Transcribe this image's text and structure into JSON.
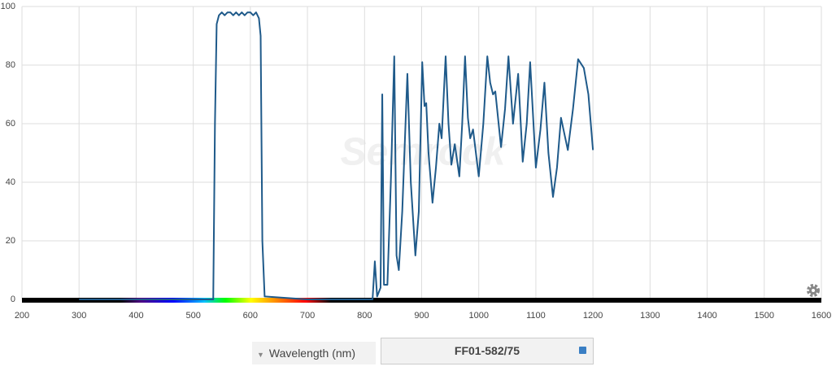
{
  "chart_data": {
    "type": "line",
    "watermark": "Semrock",
    "x": [
      300,
      535,
      538,
      541,
      545,
      550,
      555,
      560,
      565,
      570,
      575,
      580,
      585,
      590,
      595,
      600,
      605,
      610,
      615,
      618,
      621,
      625,
      700,
      814,
      818,
      822,
      828,
      831,
      834,
      840,
      846,
      852,
      856,
      860,
      866,
      875,
      881,
      889,
      895,
      901,
      905,
      908,
      912,
      919,
      925,
      931,
      935,
      942,
      947,
      952,
      958,
      966,
      971,
      976,
      981,
      985,
      990,
      1000,
      1008,
      1015,
      1020,
      1025,
      1029,
      1039,
      1046,
      1052,
      1060,
      1069,
      1077,
      1084,
      1090,
      1100,
      1108,
      1115,
      1122,
      1130,
      1137,
      1144,
      1156,
      1165,
      1174,
      1184,
      1192,
      1200
    ],
    "series": [
      {
        "name": "FF01-582/75",
        "color": "#1f5a8a",
        "values": [
          0,
          0,
          60,
          94,
          97,
          98,
          97,
          98,
          98,
          97,
          98,
          97,
          98,
          97,
          98,
          98,
          97,
          98,
          96,
          90,
          20,
          1,
          0,
          0,
          13,
          1,
          4,
          70,
          5,
          5,
          40,
          83,
          15,
          10,
          30,
          77,
          40,
          15,
          30,
          81,
          66,
          67,
          50,
          33,
          45,
          60,
          55,
          83,
          60,
          46,
          53,
          42,
          60,
          83,
          62,
          55,
          58,
          42,
          60,
          83,
          74,
          70,
          71,
          52,
          65,
          83,
          60,
          77,
          47,
          60,
          81,
          45,
          58,
          74,
          50,
          35,
          45,
          62,
          51,
          65,
          82,
          79,
          70,
          51
        ]
      }
    ],
    "xlim": [
      200,
      1600
    ],
    "xticks": [
      200,
      300,
      400,
      500,
      600,
      700,
      800,
      900,
      1000,
      1100,
      1200,
      1300,
      1400,
      1500,
      1600
    ],
    "ylim": [
      0,
      100
    ],
    "yticks": [
      0,
      20,
      40,
      60,
      80,
      100
    ],
    "grid": true,
    "x_axis_selector": "Wavelength (nm)"
  }
}
